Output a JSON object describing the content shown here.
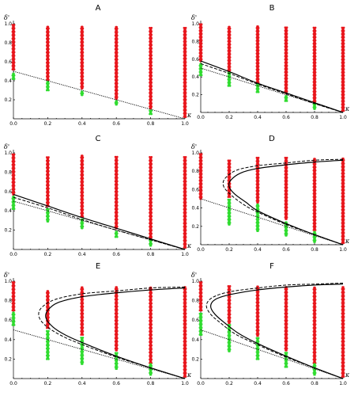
{
  "colors": {
    "unstable": "#e8151b",
    "stable": "#2fdc2f",
    "axis": "#000000"
  },
  "chart_data": [
    {
      "type": "scatter",
      "title": "A",
      "xlabel": "κ",
      "ylabel": "δ'",
      "xlim": [
        0,
        1
      ],
      "ylim": [
        0,
        1
      ],
      "xticks": [
        "0.0",
        "0.2",
        "0.4",
        "0.6",
        "0.8",
        "1.0"
      ],
      "yticks": [
        "0.2",
        "0.4",
        "0.6",
        "0.8",
        "1.0"
      ],
      "threshold_line": {
        "style": "dotted",
        "points": [
          [
            0,
            0.5
          ],
          [
            1,
            0
          ]
        ]
      },
      "columns": [
        {
          "x": 0.0,
          "green": [
            0.42,
            0.49
          ],
          "red": [
            0.52,
            1.0
          ]
        },
        {
          "x": 0.2,
          "green": [
            0.3,
            0.39
          ],
          "red": [
            0.41,
            0.97
          ]
        },
        {
          "x": 0.4,
          "green": [
            0.25,
            0.3
          ],
          "red": [
            0.32,
            0.97
          ]
        },
        {
          "x": 0.6,
          "green": [
            0.15,
            0.19
          ],
          "red": [
            0.21,
            0.97
          ]
        },
        {
          "x": 0.8,
          "green": [
            0.05,
            0.09
          ],
          "red": [
            0.11,
            0.97
          ]
        },
        {
          "x": 1.0,
          "green": [],
          "red": [
            0.02,
            0.97
          ]
        }
      ]
    },
    {
      "type": "scatter",
      "title": "B",
      "xlabel": "κ",
      "ylabel": "δ'",
      "xlim": [
        0,
        1
      ],
      "ylim": [
        0,
        1
      ],
      "xticks": [
        "0.0",
        "0.2",
        "0.4",
        "0.6",
        "0.8",
        "1.0"
      ],
      "yticks": [
        "0.2",
        "0.4",
        "0.6",
        "0.8",
        "1.0"
      ],
      "threshold_line": {
        "style": "dotted",
        "points": [
          [
            0,
            0.5
          ],
          [
            1,
            0
          ]
        ]
      },
      "curves": [
        {
          "style": "solid",
          "points": [
            [
              0,
              0.58
            ],
            [
              0.2,
              0.46
            ],
            [
              0.4,
              0.33
            ],
            [
              0.6,
              0.22
            ],
            [
              0.8,
              0.11
            ],
            [
              1,
              0
            ]
          ]
        },
        {
          "style": "dashed",
          "points": [
            [
              0,
              0.55
            ],
            [
              0.2,
              0.44
            ],
            [
              0.4,
              0.32
            ],
            [
              0.6,
              0.21
            ],
            [
              0.8,
              0.1
            ],
            [
              1,
              0
            ]
          ]
        }
      ],
      "columns": [
        {
          "x": 0.0,
          "green": [
            0.42,
            0.56
          ],
          "red": [
            0.58,
            1.0
          ]
        },
        {
          "x": 0.2,
          "green": [
            0.3,
            0.45
          ],
          "red": [
            0.46,
            0.97
          ]
        },
        {
          "x": 0.4,
          "green": [
            0.23,
            0.33
          ],
          "red": [
            0.34,
            0.97
          ]
        },
        {
          "x": 0.6,
          "green": [
            0.13,
            0.2
          ],
          "red": [
            0.22,
            0.97
          ]
        },
        {
          "x": 0.8,
          "green": [
            0.04,
            0.1
          ],
          "red": [
            0.11,
            0.97
          ]
        },
        {
          "x": 1.0,
          "green": [],
          "red": [
            0.02,
            0.97
          ]
        }
      ]
    },
    {
      "type": "scatter",
      "title": "C",
      "xlabel": "κ",
      "ylabel": "δ'",
      "xlim": [
        0,
        1
      ],
      "ylim": [
        0,
        1
      ],
      "xticks": [
        "0.0",
        "0.2",
        "0.4",
        "0.6",
        "0.8",
        "1.0"
      ],
      "yticks": [
        "0.2",
        "0.4",
        "0.6",
        "0.8",
        "1.0"
      ],
      "threshold_line": {
        "style": "dotted",
        "points": [
          [
            0,
            0.5
          ],
          [
            1,
            0
          ]
        ]
      },
      "curves": [
        {
          "style": "solid",
          "points": [
            [
              0,
              0.57
            ],
            [
              0.2,
              0.45
            ],
            [
              0.4,
              0.33
            ],
            [
              0.6,
              0.22
            ],
            [
              0.8,
              0.11
            ],
            [
              1,
              0
            ]
          ]
        },
        {
          "style": "dashed",
          "points": [
            [
              0,
              0.54
            ],
            [
              0.2,
              0.43
            ],
            [
              0.4,
              0.31
            ],
            [
              0.6,
              0.2
            ],
            [
              0.8,
              0.1
            ],
            [
              1,
              0
            ]
          ]
        }
      ],
      "columns": [
        {
          "x": 0.0,
          "green": [
            0.42,
            0.55
          ],
          "red": [
            0.57,
            1.0
          ]
        },
        {
          "x": 0.2,
          "green": [
            0.29,
            0.43
          ],
          "red": [
            0.45,
            0.97
          ]
        },
        {
          "x": 0.4,
          "green": [
            0.22,
            0.32
          ],
          "red": [
            0.34,
            0.97
          ]
        },
        {
          "x": 0.6,
          "green": [
            0.13,
            0.2
          ],
          "red": [
            0.22,
            0.97
          ]
        },
        {
          "x": 0.8,
          "green": [
            0.04,
            0.1
          ],
          "red": [
            0.11,
            0.97
          ]
        },
        {
          "x": 1.0,
          "green": [],
          "red": [
            0.02,
            0.97
          ]
        }
      ]
    },
    {
      "type": "scatter",
      "title": "D",
      "xlabel": "κ",
      "ylabel": "δ'",
      "xlim": [
        0,
        1
      ],
      "ylim": [
        0,
        1
      ],
      "xticks": [
        "0.0",
        "0.2",
        "0.4",
        "0.6",
        "0.8",
        "1.0"
      ],
      "yticks": [
        "0.2",
        "0.4",
        "0.6",
        "0.8",
        "1.0"
      ],
      "threshold_line": {
        "style": "dotted",
        "points": [
          [
            0,
            0.5
          ],
          [
            1,
            0
          ]
        ]
      },
      "curves": [
        {
          "style": "solid",
          "points": [
            [
              1,
              0.92
            ],
            [
              0.8,
              0.9
            ],
            [
              0.6,
              0.87
            ],
            [
              0.4,
              0.83
            ],
            [
              0.28,
              0.78
            ],
            [
              0.21,
              0.7
            ],
            [
              0.2,
              0.63
            ],
            [
              0.24,
              0.55
            ],
            [
              0.32,
              0.46
            ],
            [
              0.4,
              0.37
            ],
            [
              0.6,
              0.23
            ],
            [
              0.8,
              0.11
            ],
            [
              1,
              0
            ]
          ]
        },
        {
          "style": "dashed",
          "points": [
            [
              1,
              0.93
            ],
            [
              0.8,
              0.92
            ],
            [
              0.6,
              0.89
            ],
            [
              0.4,
              0.86
            ],
            [
              0.25,
              0.81
            ],
            [
              0.17,
              0.72
            ],
            [
              0.16,
              0.64
            ],
            [
              0.2,
              0.56
            ],
            [
              0.28,
              0.46
            ],
            [
              0.38,
              0.37
            ],
            [
              0.6,
              0.22
            ],
            [
              0.8,
              0.11
            ],
            [
              1,
              0
            ]
          ]
        }
      ],
      "columns": [
        {
          "x": 0.0,
          "green": [],
          "red": [
            0.5,
            1.0
          ]
        },
        {
          "x": 0.2,
          "green": [
            0.22,
            0.5
          ],
          "red": [
            0.52,
            0.92
          ]
        },
        {
          "x": 0.4,
          "green": [
            0.15,
            0.44
          ],
          "red": [
            0.46,
            0.95
          ]
        },
        {
          "x": 0.6,
          "green": [
            0.1,
            0.26
          ],
          "red": [
            0.28,
            0.95
          ]
        },
        {
          "x": 0.8,
          "green": [
            0.03,
            0.15
          ],
          "red": [
            0.16,
            0.95
          ]
        },
        {
          "x": 1.0,
          "green": [],
          "red": [
            0.02,
            0.95
          ]
        }
      ]
    },
    {
      "type": "scatter",
      "title": "E",
      "xlabel": "κ",
      "ylabel": "δ'",
      "xlim": [
        0,
        1
      ],
      "ylim": [
        0,
        1
      ],
      "xticks": [
        "0.0",
        "0.2",
        "0.4",
        "0.6",
        "0.8",
        "1.0"
      ],
      "yticks": [
        "0.2",
        "0.4",
        "0.6",
        "0.8",
        "1.0"
      ],
      "threshold_line": {
        "style": "dotted",
        "points": [
          [
            0,
            0.5
          ],
          [
            1,
            0
          ]
        ]
      },
      "curves": [
        {
          "style": "solid",
          "points": [
            [
              1,
              0.93
            ],
            [
              0.8,
              0.91
            ],
            [
              0.6,
              0.88
            ],
            [
              0.4,
              0.84
            ],
            [
              0.26,
              0.78
            ],
            [
              0.2,
              0.7
            ],
            [
              0.19,
              0.62
            ],
            [
              0.23,
              0.53
            ],
            [
              0.3,
              0.45
            ],
            [
              0.4,
              0.37
            ],
            [
              0.6,
              0.23
            ],
            [
              0.8,
              0.11
            ],
            [
              1,
              0
            ]
          ]
        },
        {
          "style": "dashed",
          "points": [
            [
              1,
              0.94
            ],
            [
              0.8,
              0.93
            ],
            [
              0.6,
              0.9
            ],
            [
              0.4,
              0.87
            ],
            [
              0.24,
              0.81
            ],
            [
              0.16,
              0.72
            ],
            [
              0.15,
              0.63
            ],
            [
              0.19,
              0.54
            ],
            [
              0.27,
              0.45
            ],
            [
              0.37,
              0.37
            ],
            [
              0.6,
              0.22
            ],
            [
              0.8,
              0.11
            ],
            [
              1,
              0
            ]
          ]
        }
      ],
      "columns": [
        {
          "x": 0.0,
          "green": [
            0.55,
            0.68
          ],
          "red": [
            0.7,
            1.0
          ]
        },
        {
          "x": 0.2,
          "green": [
            0.2,
            0.5
          ],
          "red": [
            0.52,
            0.9
          ]
        },
        {
          "x": 0.4,
          "green": [
            0.15,
            0.43
          ],
          "red": [
            0.45,
            0.95
          ]
        },
        {
          "x": 0.6,
          "green": [
            0.1,
            0.27
          ],
          "red": [
            0.29,
            0.95
          ]
        },
        {
          "x": 0.8,
          "green": [
            0.04,
            0.15
          ],
          "red": [
            0.16,
            0.95
          ]
        },
        {
          "x": 1.0,
          "green": [],
          "red": [
            0.02,
            0.95
          ]
        }
      ]
    },
    {
      "type": "scatter",
      "title": "F",
      "xlabel": "κ",
      "ylabel": "δ'",
      "xlim": [
        0,
        1
      ],
      "ylim": [
        0,
        1
      ],
      "xticks": [
        "0.0",
        "0.2",
        "0.4",
        "0.6",
        "0.8",
        "1.0"
      ],
      "yticks": [
        "0.2",
        "0.4",
        "0.6",
        "0.8",
        "1.0"
      ],
      "threshold_line": {
        "style": "dotted",
        "points": [
          [
            0,
            0.5
          ],
          [
            1,
            0
          ]
        ]
      },
      "curves": [
        {
          "style": "solid",
          "points": [
            [
              1,
              0.97
            ],
            [
              0.8,
              0.96
            ],
            [
              0.6,
              0.94
            ],
            [
              0.4,
              0.91
            ],
            [
              0.2,
              0.86
            ],
            [
              0.1,
              0.81
            ],
            [
              0.07,
              0.74
            ],
            [
              0.1,
              0.66
            ],
            [
              0.17,
              0.57
            ],
            [
              0.27,
              0.46
            ],
            [
              0.4,
              0.36
            ],
            [
              0.6,
              0.23
            ],
            [
              0.8,
              0.11
            ],
            [
              1,
              0
            ]
          ]
        },
        {
          "style": "dashed",
          "points": [
            [
              1,
              0.98
            ],
            [
              0.8,
              0.97
            ],
            [
              0.6,
              0.96
            ],
            [
              0.4,
              0.93
            ],
            [
              0.2,
              0.89
            ],
            [
              0.08,
              0.83
            ],
            [
              0.04,
              0.75
            ],
            [
              0.07,
              0.66
            ],
            [
              0.14,
              0.57
            ],
            [
              0.24,
              0.46
            ],
            [
              0.38,
              0.36
            ],
            [
              0.6,
              0.22
            ],
            [
              0.8,
              0.11
            ],
            [
              1,
              0
            ]
          ]
        }
      ],
      "columns": [
        {
          "x": 0.0,
          "green": [
            0.45,
            0.68
          ],
          "red": [
            0.7,
            1.0
          ]
        },
        {
          "x": 0.2,
          "green": [
            0.28,
            0.55
          ],
          "red": [
            0.57,
            0.95
          ]
        },
        {
          "x": 0.4,
          "green": [
            0.2,
            0.42
          ],
          "red": [
            0.44,
            0.95
          ]
        },
        {
          "x": 0.6,
          "green": [
            0.12,
            0.27
          ],
          "red": [
            0.29,
            0.95
          ]
        },
        {
          "x": 0.8,
          "green": [
            0.04,
            0.15
          ],
          "red": [
            0.16,
            0.95
          ]
        },
        {
          "x": 1.0,
          "green": [],
          "red": [
            0.02,
            0.95
          ]
        }
      ]
    }
  ]
}
